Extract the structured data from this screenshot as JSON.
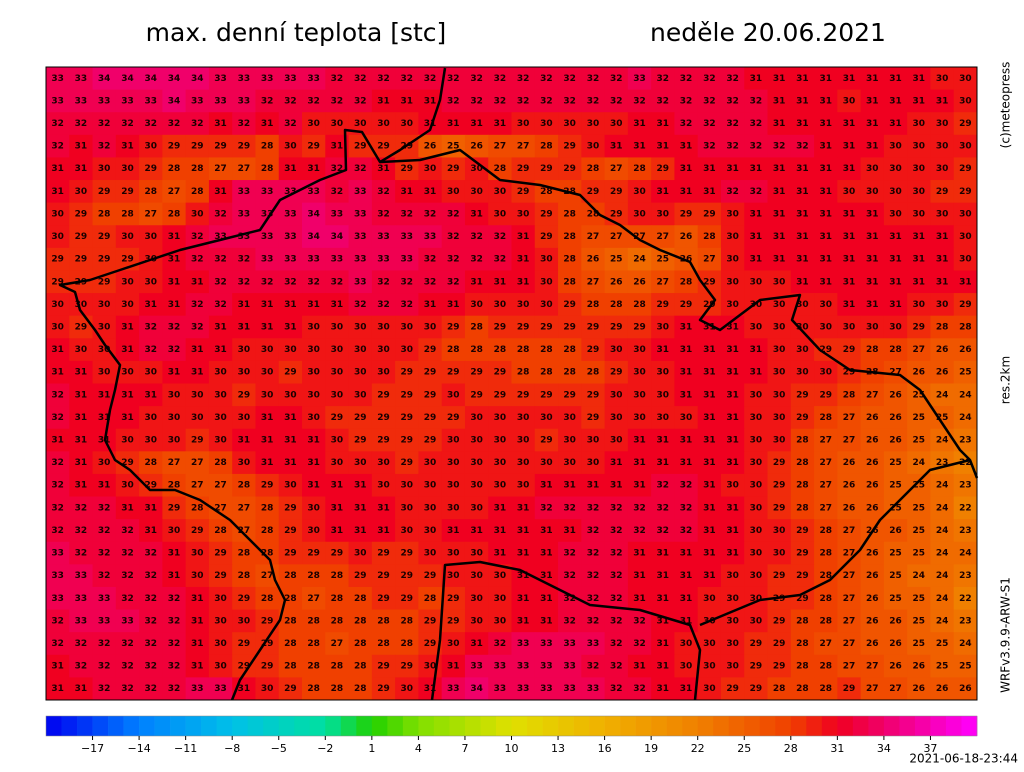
{
  "header": {
    "title": "max. denní teplota [stc]",
    "date": "neděle 20.06.2021"
  },
  "side_labels": {
    "copyright": "(c)meteopress",
    "resolution": "res.2km",
    "model": "WRFv3.9.9-ARW-S1"
  },
  "timestamp": "2021-06-18-23:44",
  "colorbar": {
    "min": -20,
    "max": 40,
    "ticks": [
      {
        "value": -17,
        "label": "−17"
      },
      {
        "value": -14,
        "label": "−14"
      },
      {
        "value": -11,
        "label": "−11"
      },
      {
        "value": -8,
        "label": "−8"
      },
      {
        "value": -5,
        "label": "−5"
      },
      {
        "value": -2,
        "label": "−2"
      },
      1,
      4,
      7,
      10,
      13,
      16,
      19,
      22,
      25,
      28,
      31,
      34,
      37
    ],
    "colors": [
      [
        -20,
        "#0000f0"
      ],
      [
        -14,
        "#0080ff"
      ],
      [
        -8,
        "#00c0e8"
      ],
      [
        -2,
        "#00e0a0"
      ],
      [
        1,
        "#20d000"
      ],
      [
        4,
        "#80e000"
      ],
      [
        10,
        "#e0e000"
      ],
      [
        16,
        "#f0b000"
      ],
      [
        22,
        "#f08000"
      ],
      [
        28,
        "#f04000"
      ],
      [
        31,
        "#f00020"
      ],
      [
        34,
        "#f0006a"
      ],
      [
        40,
        "#ff00ff"
      ]
    ]
  },
  "grid": [
    [
      33,
      33,
      34,
      34,
      34,
      34,
      34,
      33,
      33,
      33,
      33,
      33,
      32,
      32,
      32,
      32,
      32,
      32,
      32,
      32,
      32,
      32,
      32,
      32,
      32,
      33,
      32,
      32,
      32,
      32,
      31,
      31,
      31,
      31,
      31,
      31,
      31,
      31,
      30,
      30
    ],
    [
      33,
      33,
      33,
      33,
      33,
      34,
      33,
      33,
      33,
      32,
      32,
      32,
      32,
      32,
      31,
      31,
      31,
      32,
      32,
      32,
      32,
      32,
      32,
      32,
      32,
      32,
      32,
      32,
      32,
      32,
      32,
      31,
      31,
      31,
      30,
      31,
      31,
      31,
      31,
      30
    ],
    [
      32,
      32,
      32,
      32,
      32,
      32,
      32,
      31,
      32,
      31,
      32,
      30,
      30,
      30,
      30,
      30,
      31,
      31,
      31,
      31,
      30,
      30,
      30,
      30,
      30,
      31,
      31,
      32,
      32,
      32,
      32,
      31,
      31,
      31,
      31,
      31,
      31,
      30,
      30,
      29
    ],
    [
      32,
      31,
      32,
      31,
      30,
      29,
      29,
      29,
      29,
      28,
      30,
      29,
      31,
      29,
      29,
      29,
      26,
      25,
      26,
      27,
      27,
      28,
      29,
      30,
      31,
      31,
      31,
      31,
      32,
      32,
      32,
      32,
      32,
      31,
      31,
      31,
      30,
      30,
      30,
      30
    ],
    [
      31,
      31,
      30,
      30,
      29,
      28,
      28,
      27,
      27,
      28,
      31,
      31,
      32,
      32,
      31,
      29,
      30,
      29,
      30,
      28,
      29,
      29,
      29,
      28,
      27,
      28,
      29,
      31,
      31,
      31,
      31,
      31,
      31,
      31,
      31,
      30,
      30,
      30,
      30,
      29
    ],
    [
      31,
      30,
      29,
      29,
      28,
      27,
      28,
      31,
      33,
      33,
      33,
      33,
      32,
      33,
      32,
      31,
      31,
      30,
      30,
      30,
      29,
      28,
      28,
      29,
      29,
      30,
      31,
      31,
      31,
      32,
      32,
      31,
      31,
      31,
      30,
      30,
      30,
      30,
      29,
      29
    ],
    [
      30,
      29,
      28,
      28,
      27,
      28,
      30,
      32,
      33,
      33,
      33,
      34,
      33,
      33,
      32,
      32,
      32,
      32,
      31,
      30,
      30,
      29,
      28,
      28,
      29,
      30,
      30,
      29,
      29,
      30,
      31,
      31,
      31,
      31,
      31,
      31,
      30,
      30,
      30,
      30
    ],
    [
      30,
      29,
      29,
      30,
      30,
      31,
      32,
      33,
      33,
      33,
      33,
      34,
      34,
      33,
      33,
      33,
      33,
      32,
      32,
      32,
      31,
      29,
      28,
      27,
      27,
      27,
      27,
      26,
      28,
      30,
      31,
      31,
      31,
      31,
      31,
      31,
      31,
      31,
      31,
      30
    ],
    [
      29,
      29,
      29,
      29,
      30,
      31,
      32,
      32,
      32,
      33,
      33,
      33,
      33,
      33,
      33,
      33,
      32,
      32,
      32,
      32,
      31,
      30,
      28,
      26,
      25,
      24,
      25,
      26,
      27,
      30,
      31,
      31,
      31,
      31,
      31,
      31,
      31,
      31,
      31,
      30
    ],
    [
      29,
      29,
      29,
      30,
      30,
      31,
      31,
      32,
      32,
      32,
      32,
      32,
      32,
      33,
      32,
      32,
      32,
      32,
      31,
      31,
      31,
      30,
      28,
      27,
      26,
      26,
      27,
      28,
      29,
      30,
      30,
      30,
      31,
      31,
      31,
      31,
      31,
      31,
      31,
      31
    ],
    [
      30,
      30,
      30,
      30,
      31,
      31,
      32,
      32,
      31,
      31,
      31,
      31,
      31,
      32,
      32,
      32,
      31,
      31,
      30,
      30,
      30,
      30,
      29,
      28,
      28,
      28,
      29,
      29,
      29,
      30,
      30,
      30,
      30,
      30,
      31,
      31,
      31,
      30,
      30,
      29
    ],
    [
      30,
      29,
      30,
      31,
      32,
      32,
      32,
      31,
      31,
      31,
      31,
      30,
      30,
      30,
      30,
      30,
      30,
      29,
      28,
      29,
      29,
      29,
      29,
      29,
      29,
      29,
      30,
      31,
      31,
      31,
      30,
      30,
      30,
      30,
      30,
      30,
      30,
      29,
      28,
      28
    ],
    [
      31,
      30,
      30,
      31,
      32,
      32,
      31,
      31,
      30,
      30,
      30,
      30,
      30,
      30,
      30,
      30,
      29,
      28,
      28,
      28,
      28,
      28,
      28,
      29,
      30,
      30,
      31,
      31,
      31,
      31,
      31,
      30,
      30,
      29,
      29,
      28,
      28,
      27,
      26,
      26
    ],
    [
      31,
      31,
      30,
      30,
      30,
      31,
      31,
      30,
      30,
      30,
      29,
      30,
      30,
      30,
      30,
      29,
      29,
      29,
      29,
      29,
      28,
      28,
      28,
      28,
      29,
      30,
      30,
      31,
      31,
      31,
      31,
      30,
      30,
      30,
      29,
      28,
      27,
      26,
      26,
      25
    ],
    [
      32,
      31,
      31,
      31,
      31,
      30,
      30,
      30,
      29,
      30,
      30,
      30,
      30,
      30,
      29,
      29,
      29,
      30,
      29,
      29,
      29,
      29,
      29,
      29,
      30,
      30,
      30,
      31,
      31,
      31,
      30,
      30,
      29,
      29,
      28,
      27,
      26,
      25,
      24,
      24
    ],
    [
      32,
      31,
      31,
      31,
      30,
      30,
      30,
      30,
      30,
      31,
      31,
      30,
      29,
      29,
      29,
      29,
      29,
      29,
      30,
      30,
      30,
      30,
      30,
      29,
      30,
      30,
      30,
      30,
      31,
      31,
      30,
      30,
      29,
      28,
      27,
      26,
      26,
      25,
      25,
      24
    ],
    [
      31,
      31,
      31,
      30,
      30,
      30,
      29,
      30,
      31,
      31,
      31,
      31,
      30,
      29,
      29,
      29,
      29,
      30,
      30,
      30,
      30,
      29,
      30,
      30,
      30,
      31,
      31,
      31,
      31,
      31,
      30,
      30,
      28,
      27,
      27,
      26,
      26,
      25,
      24,
      23
    ],
    [
      32,
      31,
      30,
      29,
      28,
      27,
      27,
      28,
      30,
      31,
      31,
      31,
      30,
      30,
      30,
      29,
      30,
      30,
      30,
      30,
      30,
      30,
      30,
      30,
      31,
      31,
      31,
      31,
      31,
      31,
      30,
      29,
      28,
      27,
      26,
      26,
      25,
      24,
      23,
      22
    ],
    [
      32,
      31,
      31,
      30,
      29,
      28,
      27,
      27,
      28,
      29,
      30,
      31,
      31,
      31,
      30,
      30,
      30,
      30,
      30,
      30,
      30,
      31,
      31,
      31,
      31,
      31,
      32,
      32,
      31,
      30,
      30,
      29,
      28,
      27,
      26,
      26,
      25,
      25,
      24,
      23
    ],
    [
      32,
      32,
      32,
      31,
      31,
      29,
      28,
      27,
      27,
      28,
      29,
      30,
      31,
      31,
      31,
      30,
      30,
      30,
      30,
      31,
      31,
      32,
      32,
      32,
      32,
      32,
      32,
      32,
      31,
      31,
      30,
      29,
      28,
      27,
      26,
      26,
      25,
      25,
      24,
      22
    ],
    [
      32,
      32,
      32,
      32,
      31,
      30,
      29,
      28,
      27,
      28,
      29,
      30,
      31,
      31,
      31,
      30,
      30,
      31,
      31,
      31,
      31,
      31,
      31,
      32,
      32,
      32,
      32,
      32,
      31,
      31,
      30,
      30,
      29,
      28,
      27,
      26,
      26,
      25,
      24,
      23
    ],
    [
      33,
      32,
      32,
      32,
      32,
      31,
      30,
      29,
      28,
      28,
      29,
      29,
      29,
      30,
      29,
      29,
      30,
      30,
      30,
      31,
      31,
      31,
      32,
      32,
      32,
      31,
      31,
      31,
      31,
      31,
      30,
      30,
      29,
      28,
      27,
      26,
      25,
      25,
      24,
      24
    ],
    [
      33,
      33,
      32,
      32,
      32,
      31,
      30,
      29,
      28,
      27,
      28,
      28,
      28,
      29,
      29,
      29,
      29,
      30,
      30,
      30,
      31,
      31,
      32,
      32,
      32,
      31,
      31,
      31,
      31,
      30,
      30,
      29,
      29,
      28,
      27,
      26,
      25,
      24,
      24,
      23
    ],
    [
      33,
      33,
      33,
      32,
      32,
      32,
      31,
      30,
      29,
      28,
      28,
      27,
      28,
      28,
      29,
      29,
      28,
      29,
      30,
      30,
      31,
      31,
      32,
      32,
      32,
      31,
      31,
      31,
      30,
      30,
      30,
      29,
      29,
      28,
      27,
      26,
      25,
      25,
      24,
      22
    ],
    [
      32,
      33,
      33,
      33,
      32,
      32,
      31,
      30,
      30,
      29,
      28,
      28,
      28,
      28,
      28,
      28,
      29,
      29,
      30,
      30,
      31,
      31,
      32,
      32,
      32,
      32,
      31,
      31,
      30,
      30,
      30,
      29,
      28,
      28,
      27,
      26,
      26,
      25,
      24,
      23
    ],
    [
      32,
      32,
      32,
      32,
      32,
      32,
      31,
      30,
      29,
      29,
      28,
      28,
      27,
      28,
      28,
      28,
      29,
      30,
      31,
      32,
      33,
      33,
      33,
      33,
      32,
      32,
      31,
      30,
      30,
      30,
      29,
      29,
      28,
      27,
      27,
      26,
      26,
      25,
      25,
      24
    ],
    [
      31,
      32,
      32,
      32,
      32,
      32,
      31,
      30,
      29,
      29,
      28,
      28,
      28,
      28,
      29,
      29,
      30,
      31,
      33,
      33,
      33,
      33,
      33,
      32,
      32,
      31,
      31,
      30,
      30,
      30,
      29,
      29,
      28,
      28,
      27,
      27,
      26,
      26,
      25,
      25
    ],
    [
      31,
      31,
      32,
      32,
      32,
      32,
      33,
      33,
      31,
      30,
      29,
      28,
      28,
      28,
      29,
      30,
      31,
      33,
      34,
      33,
      33,
      33,
      33,
      33,
      32,
      32,
      31,
      31,
      30,
      29,
      29,
      28,
      28,
      28,
      29,
      27,
      27,
      26,
      26,
      26
    ]
  ]
}
